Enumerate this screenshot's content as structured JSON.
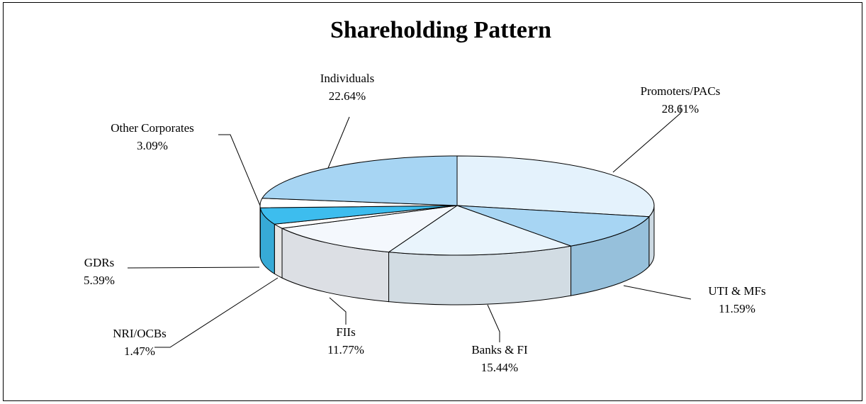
{
  "chart_data": {
    "type": "pie3d",
    "title": "Shareholding Pattern",
    "categories": [
      "Promoters/PACs",
      "UTI & MFs",
      "Banks & FI",
      "FIIs",
      "NRI/OCBs",
      "GDRs",
      "Other Corporates",
      "Individuals"
    ],
    "values": [
      28.61,
      11.59,
      15.44,
      11.77,
      1.47,
      5.39,
      3.09,
      22.64
    ],
    "value_labels": [
      "28.61%",
      "11.59%",
      "15.44%",
      "11.77%",
      "1.47%",
      "5.39%",
      "3.09%",
      "22.64%"
    ],
    "colors": [
      "#e4f2fc",
      "#a7d5f3",
      "#e9f4fc",
      "#f4f8fd",
      "#ffffff",
      "#3dbdee",
      "#ffffff",
      "#a7d5f3"
    ]
  }
}
